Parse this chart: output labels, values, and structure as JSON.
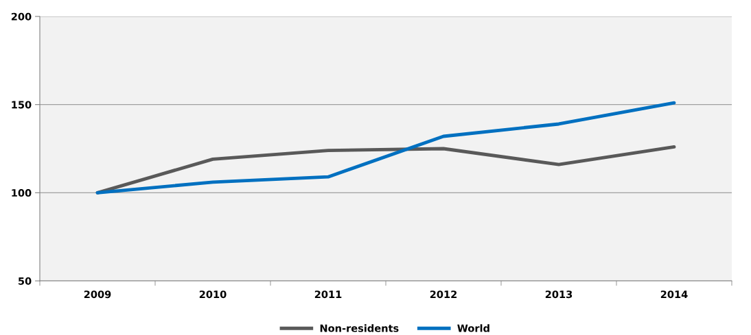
{
  "chart_data": {
    "type": "line",
    "categories": [
      "2009",
      "2010",
      "2011",
      "2012",
      "2013",
      "2014"
    ],
    "series": [
      {
        "name": "Non-residents",
        "color": "#595959",
        "values": [
          100,
          119,
          124,
          125,
          116,
          126
        ]
      },
      {
        "name": "World",
        "color": "#0070c0",
        "values": [
          100,
          106,
          109,
          132,
          139,
          151
        ]
      }
    ],
    "ylim": [
      50,
      200
    ],
    "yticks": [
      50,
      100,
      150,
      200
    ],
    "grid": "y",
    "legend": "bottom",
    "marker": "none",
    "line_style": "solid"
  }
}
